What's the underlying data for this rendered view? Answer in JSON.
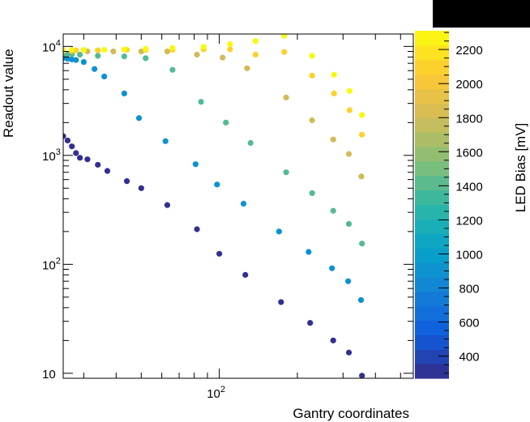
{
  "chart_data": {
    "type": "scatter",
    "title": "",
    "xlabel": "Gantry coordinates",
    "ylabel": "Readout value",
    "xscale": "log",
    "yscale": "log",
    "xlim": [
      25,
      560
    ],
    "ylim": [
      9,
      13000
    ],
    "x_tick_labels": [
      {
        "value": 100,
        "base": "10",
        "exp": "2"
      }
    ],
    "y_tick_labels": [
      {
        "value": 10,
        "base": "10",
        "exp": ""
      },
      {
        "value": 100,
        "base": "10",
        "exp": "2"
      },
      {
        "value": 1000,
        "base": "10",
        "exp": "3"
      },
      {
        "value": 10000,
        "base": "10",
        "exp": "4"
      }
    ],
    "grid": false,
    "colorbar": {
      "label": "LED Bias [mV]",
      "min": 270,
      "max": 2310,
      "ticks": [
        400,
        600,
        800,
        1000,
        1200,
        1400,
        1600,
        1800,
        2000,
        2200
      ],
      "colormap": [
        "#352a87",
        "#0f5cdd",
        "#1481d6",
        "#06a4ca",
        "#2eb7a4",
        "#87bf77",
        "#d1bb59",
        "#fec832",
        "#f9fb0e"
      ]
    },
    "series": [
      {
        "bias": 300,
        "points": [
          [
            25,
            1500
          ],
          [
            26,
            1370
          ],
          [
            27,
            1210
          ],
          [
            28,
            1050
          ],
          [
            29,
            950
          ],
          [
            31,
            920
          ],
          [
            34,
            820
          ],
          [
            37,
            720
          ],
          [
            44,
            580
          ],
          [
            50,
            500
          ],
          [
            63,
            350
          ],
          [
            82,
            210
          ],
          [
            100,
            125
          ],
          [
            126,
            80
          ],
          [
            173,
            45
          ],
          [
            224,
            29
          ],
          [
            275,
            20
          ],
          [
            316,
            15.5
          ],
          [
            355,
            9.5
          ]
        ]
      },
      {
        "bias": 900,
        "points": [
          [
            25,
            7800
          ],
          [
            26,
            7700
          ],
          [
            27,
            7600
          ],
          [
            28,
            7500
          ],
          [
            30,
            7200
          ],
          [
            33,
            6200
          ],
          [
            36,
            5300
          ],
          [
            43,
            3700
          ],
          [
            49,
            2200
          ],
          [
            62,
            1350
          ],
          [
            81,
            830
          ],
          [
            98,
            540
          ],
          [
            124,
            360
          ],
          [
            170,
            200
          ],
          [
            221,
            130
          ],
          [
            272,
            92
          ],
          [
            314,
            70
          ],
          [
            352,
            47
          ]
        ]
      },
      {
        "bias": 1400,
        "points": [
          [
            25,
            8500
          ],
          [
            26,
            8500
          ],
          [
            27,
            8500
          ],
          [
            29,
            8400
          ],
          [
            34,
            8200
          ],
          [
            43,
            8100
          ],
          [
            52,
            7800
          ],
          [
            66,
            6100
          ],
          [
            85,
            3100
          ],
          [
            106,
            2000
          ],
          [
            132,
            1300
          ],
          [
            181,
            700
          ],
          [
            228,
            450
          ],
          [
            275,
            310
          ],
          [
            316,
            235
          ],
          [
            355,
            155
          ]
        ]
      },
      {
        "bias": 1800,
        "points": [
          [
            25,
            9000
          ],
          [
            27,
            9000
          ],
          [
            31,
            9000
          ],
          [
            39,
            9000
          ],
          [
            50,
            9000
          ],
          [
            63,
            9000
          ],
          [
            82,
            8400
          ],
          [
            103,
            7900
          ],
          [
            128,
            6300
          ],
          [
            181,
            3400
          ],
          [
            228,
            2100
          ],
          [
            275,
            1400
          ],
          [
            316,
            1030
          ],
          [
            353,
            640
          ]
        ]
      },
      {
        "bias": 2100,
        "points": [
          [
            25,
            9200
          ],
          [
            28,
            9200
          ],
          [
            34,
            9200
          ],
          [
            44,
            9300
          ],
          [
            52,
            9300
          ],
          [
            66,
            9300
          ],
          [
            87,
            9400
          ],
          [
            110,
            9400
          ],
          [
            138,
            8400
          ],
          [
            178,
            8900
          ],
          [
            228,
            5400
          ],
          [
            277,
            3700
          ],
          [
            318,
            2600
          ],
          [
            355,
            1550
          ]
        ]
      },
      {
        "bias": 2300,
        "points": [
          [
            25,
            9300
          ],
          [
            27,
            9300
          ],
          [
            30,
            9300
          ],
          [
            36,
            9300
          ],
          [
            43,
            9400
          ],
          [
            52,
            9500
          ],
          [
            66,
            9700
          ],
          [
            87,
            9900
          ],
          [
            110,
            10500
          ],
          [
            138,
            11200
          ],
          [
            178,
            12500
          ],
          [
            228,
            8200
          ],
          [
            277,
            5500
          ],
          [
            318,
            3900
          ],
          [
            355,
            2350
          ]
        ]
      }
    ]
  }
}
